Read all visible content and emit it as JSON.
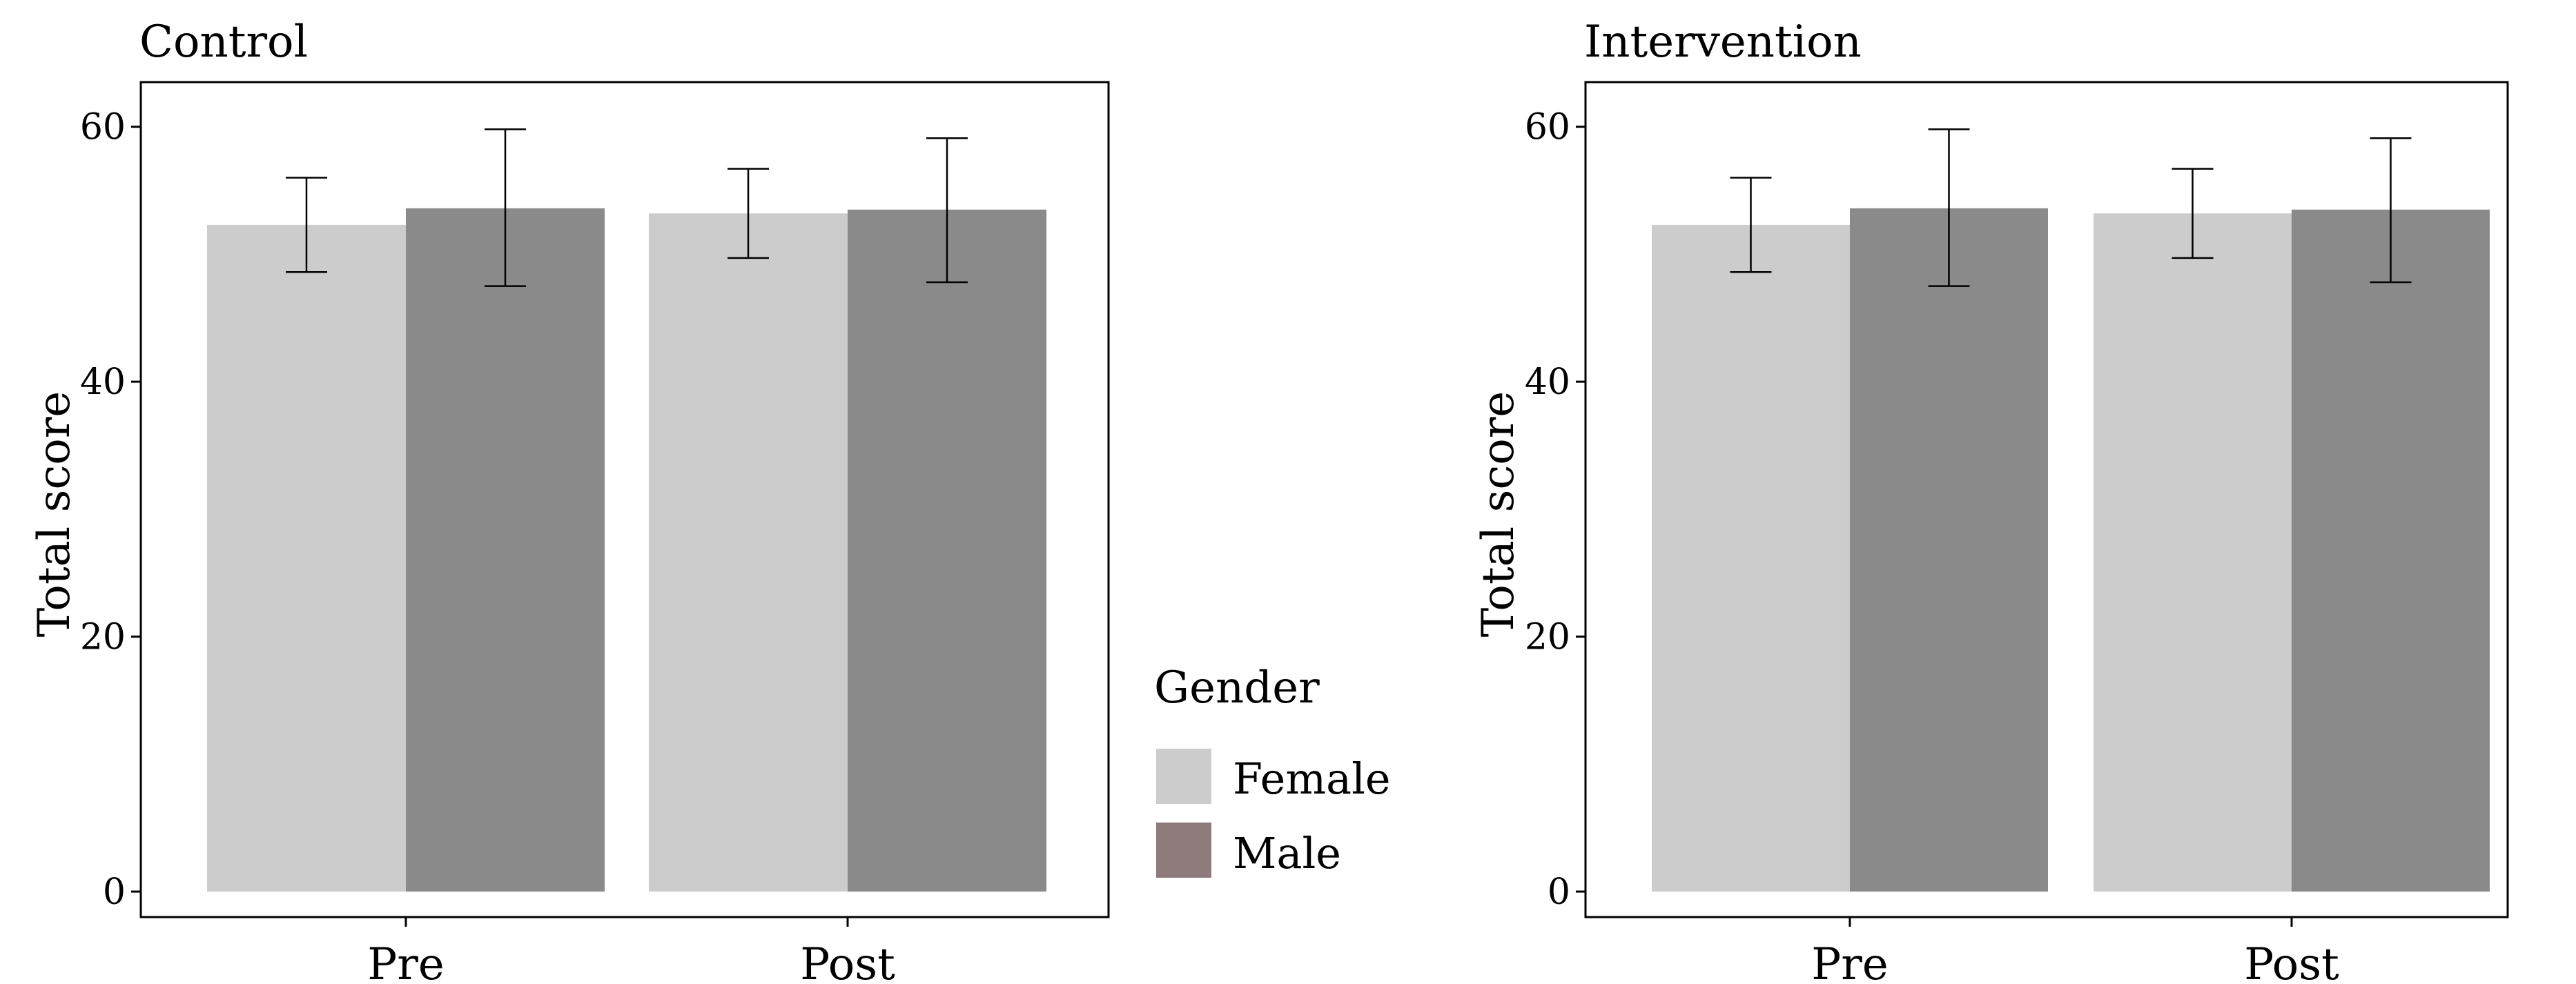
{
  "chart_data": [
    {
      "type": "bar",
      "title": "Control",
      "xlabel": "",
      "ylabel": "Total score",
      "categories": [
        "Pre",
        "Post"
      ],
      "ylim": [
        -2,
        63.5
      ],
      "yticks": [
        0,
        20,
        40,
        60
      ],
      "grid": false,
      "series": [
        {
          "name": "Female",
          "values": [
            52.3,
            53.2
          ],
          "error_low": [
            48.6,
            49.7
          ],
          "error_high": [
            56.0,
            56.7
          ]
        },
        {
          "name": "Male",
          "values": [
            53.6,
            53.5
          ],
          "error_low": [
            47.5,
            47.8
          ],
          "error_high": [
            59.8,
            59.1
          ]
        }
      ]
    },
    {
      "type": "bar",
      "title": "Intervention",
      "xlabel": "",
      "ylabel": "Total score",
      "categories": [
        "Pre",
        "Post"
      ],
      "ylim": [
        -2,
        63.5
      ],
      "yticks": [
        0,
        20,
        40,
        60
      ],
      "grid": false,
      "series": [
        {
          "name": "Female",
          "values": [
            52.3,
            53.2
          ],
          "error_low": [
            48.6,
            49.7
          ],
          "error_high": [
            56.0,
            56.7
          ]
        },
        {
          "name": "Male",
          "values": [
            53.6,
            53.5
          ],
          "error_low": [
            47.5,
            47.8
          ],
          "error_high": [
            59.8,
            59.1
          ]
        }
      ]
    }
  ],
  "legend": {
    "title": "Gender",
    "placement": "center",
    "entries": [
      {
        "label": "Female",
        "color": "#cccccc"
      },
      {
        "label": "Male",
        "color": "#8f7b7b"
      }
    ]
  },
  "colors": {
    "series_fill": [
      "#cccccc",
      "#8a8a8a"
    ],
    "frame": "#000000",
    "errorbar": "#000000"
  }
}
